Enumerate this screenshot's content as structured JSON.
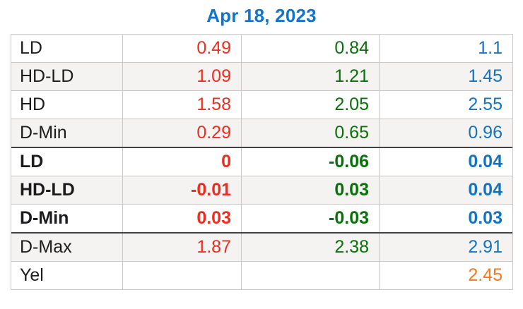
{
  "title": "Apr 18, 2023",
  "colors": {
    "title_blue": "#1175d0",
    "red": "#ee2d1e",
    "green": "#077207",
    "blue": "#1473c0",
    "orange": "#f5791d",
    "stripe": "#f4f3f2",
    "border_thin": "#c9c8c7",
    "border_thick": "#424242",
    "label_text": "#1c1c1e"
  },
  "table": {
    "rows": [
      {
        "label": "LD",
        "bold": false,
        "thick_top": false,
        "values": [
          {
            "t": "0.49",
            "c": "red"
          },
          {
            "t": "0.84",
            "c": "green"
          },
          {
            "t": "1.1",
            "c": "blue"
          }
        ]
      },
      {
        "label": "HD-LD",
        "bold": false,
        "thick_top": false,
        "values": [
          {
            "t": "1.09",
            "c": "red"
          },
          {
            "t": "1.21",
            "c": "green"
          },
          {
            "t": "1.45",
            "c": "blue"
          }
        ]
      },
      {
        "label": "HD",
        "bold": false,
        "thick_top": false,
        "values": [
          {
            "t": "1.58",
            "c": "red"
          },
          {
            "t": "2.05",
            "c": "green"
          },
          {
            "t": "2.55",
            "c": "blue"
          }
        ]
      },
      {
        "label": "D-Min",
        "bold": false,
        "thick_top": false,
        "values": [
          {
            "t": "0.29",
            "c": "red"
          },
          {
            "t": "0.65",
            "c": "green"
          },
          {
            "t": "0.96",
            "c": "blue"
          }
        ]
      },
      {
        "label": "LD",
        "bold": true,
        "thick_top": true,
        "values": [
          {
            "t": "0",
            "c": "red"
          },
          {
            "t": "-0.06",
            "c": "green"
          },
          {
            "t": "0.04",
            "c": "blue"
          }
        ]
      },
      {
        "label": "HD-LD",
        "bold": true,
        "thick_top": false,
        "values": [
          {
            "t": "-0.01",
            "c": "red"
          },
          {
            "t": "0.03",
            "c": "green"
          },
          {
            "t": "0.04",
            "c": "blue"
          }
        ]
      },
      {
        "label": "D-Min",
        "bold": true,
        "thick_top": false,
        "values": [
          {
            "t": "0.03",
            "c": "red"
          },
          {
            "t": "-0.03",
            "c": "green"
          },
          {
            "t": "0.03",
            "c": "blue"
          }
        ]
      },
      {
        "label": "D-Max",
        "bold": false,
        "thick_top": true,
        "values": [
          {
            "t": "1.87",
            "c": "red"
          },
          {
            "t": "2.38",
            "c": "green"
          },
          {
            "t": "2.91",
            "c": "blue"
          }
        ]
      },
      {
        "label": "Yel",
        "bold": false,
        "thick_top": false,
        "values": [
          {
            "t": "",
            "c": null
          },
          {
            "t": "",
            "c": null
          },
          {
            "t": "2.45",
            "c": "orange"
          }
        ]
      }
    ]
  },
  "chart_data": {
    "type": "table",
    "title": "Apr 18, 2023",
    "columns": [
      "label",
      "value_red",
      "value_green",
      "value_blue"
    ],
    "rows": [
      {
        "label": "LD",
        "values": [
          0.49,
          0.84,
          1.1
        ]
      },
      {
        "label": "HD-LD",
        "values": [
          1.09,
          1.21,
          1.45
        ]
      },
      {
        "label": "HD",
        "values": [
          1.58,
          2.05,
          2.55
        ]
      },
      {
        "label": "D-Min",
        "values": [
          0.29,
          0.65,
          0.96
        ]
      },
      {
        "label": "LD",
        "values": [
          0,
          -0.06,
          0.04
        ]
      },
      {
        "label": "HD-LD",
        "values": [
          -0.01,
          0.03,
          0.04
        ]
      },
      {
        "label": "D-Min",
        "values": [
          0.03,
          -0.03,
          0.03
        ]
      },
      {
        "label": "D-Max",
        "values": [
          1.87,
          2.38,
          2.91
        ]
      },
      {
        "label": "Yel",
        "values": [
          null,
          null,
          2.45
        ]
      }
    ],
    "notes": "three unlabeled value columns color-coded red/green/blue; Yel value shown in orange; bold rows form a middle section separated by thick rules"
  }
}
